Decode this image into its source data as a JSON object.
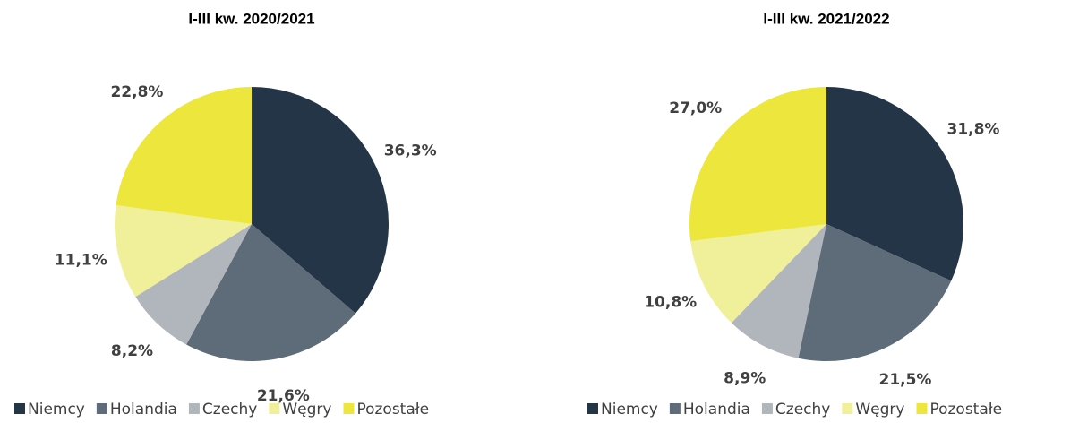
{
  "chart_data": [
    {
      "type": "pie",
      "title": "I-III kw. 2020/2021",
      "categories": [
        "Niemcy",
        "Holandia",
        "Czechy",
        "Węgry",
        "Pozostałe"
      ],
      "values": [
        36.3,
        21.6,
        8.2,
        11.1,
        22.8
      ],
      "value_labels": [
        "36,3%",
        "21,6%",
        "8,2%",
        "11,1%",
        "22,8%"
      ],
      "colors": [
        "#243547",
        "#5e6b78",
        "#b1b6bd",
        "#f0f09a",
        "#ede63d"
      ],
      "legend": "bottom"
    },
    {
      "type": "pie",
      "title": "I-III kw. 2021/2022",
      "categories": [
        "Niemcy",
        "Holandia",
        "Czechy",
        "Węgry",
        "Pozostałe"
      ],
      "values": [
        31.8,
        21.5,
        8.9,
        10.8,
        27.0
      ],
      "value_labels": [
        "31,8%",
        "21,5%",
        "8,9%",
        "10,8%",
        "27,0%"
      ],
      "colors": [
        "#243547",
        "#5e6b78",
        "#b1b6bd",
        "#f0f09a",
        "#ede63d"
      ],
      "legend": "bottom"
    }
  ]
}
